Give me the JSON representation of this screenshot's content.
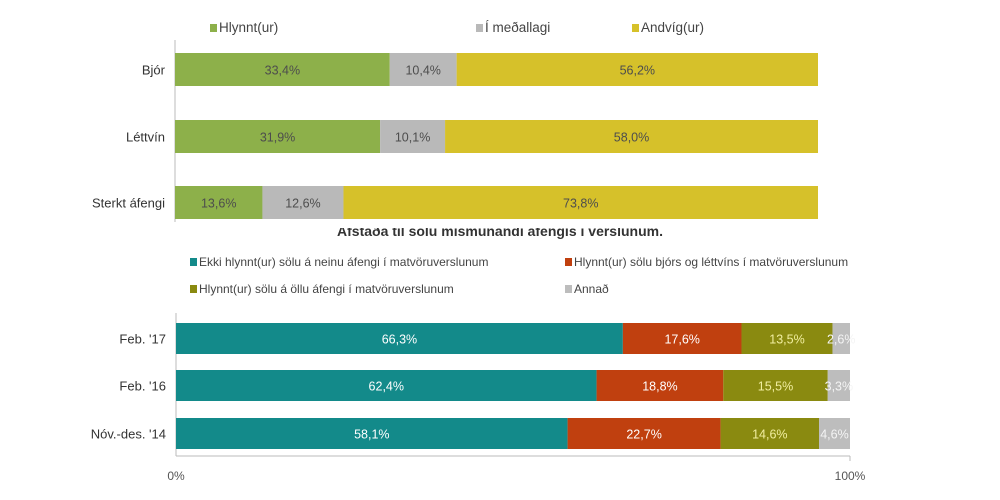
{
  "chart_data": [
    {
      "type": "bar",
      "orientation": "horizontal",
      "stacked": true,
      "categories": [
        "Bjór",
        "Léttvín",
        "Sterkt áfengi"
      ],
      "series": [
        {
          "name": "Hlynnt(ur)",
          "color": "#8db04a",
          "values": [
            33.4,
            31.9,
            13.6
          ],
          "labels": [
            "33,4%",
            "31,9%",
            "13,6%"
          ]
        },
        {
          "name": "Í meðallagi",
          "color": "#b9b9b9",
          "values": [
            10.4,
            10.1,
            12.6
          ],
          "labels": [
            "10,4%",
            "10,1%",
            "12,6%"
          ]
        },
        {
          "name": "Andvíg(ur)",
          "color": "#d6c12a",
          "values": [
            56.2,
            58.0,
            73.8
          ],
          "labels": [
            "56,2%",
            "58,0%",
            "73,8%"
          ]
        }
      ],
      "xlim": [
        0,
        100
      ],
      "legend": "top"
    },
    {
      "type": "bar",
      "orientation": "horizontal",
      "stacked": true,
      "title": "Afstaða til sölu mismunandi áfengis í verslunum.",
      "categories": [
        "Feb. '17",
        "Feb. '16",
        "Nóv.-des. '14"
      ],
      "series": [
        {
          "name": "Ekki hlynnt(ur) sölu á neinu áfengi í matvöruverslunum",
          "color": "#138a8a",
          "values": [
            66.3,
            62.4,
            58.1
          ],
          "labels": [
            "66,3%",
            "62,4%",
            "58,1%"
          ]
        },
        {
          "name": "Hlynnt(ur) sölu bjórs og léttvíns í matvöruverslunum",
          "color": "#c0400f",
          "values": [
            17.6,
            18.8,
            22.7
          ],
          "labels": [
            "17,6%",
            "18,8%",
            "22,7%"
          ]
        },
        {
          "name": "Hlynnt(ur) sölu á öllu áfengi í matvöruverslunum",
          "color": "#8a8a10",
          "values": [
            13.5,
            15.5,
            14.6
          ],
          "labels": [
            "13,5%",
            "15,5%",
            "14,6%"
          ]
        },
        {
          "name": "Annað",
          "color": "#bdbdbd",
          "values": [
            2.6,
            3.3,
            4.6
          ],
          "labels": [
            "2,6%",
            "3,3%",
            "4,6%"
          ]
        }
      ],
      "xlim": [
        0,
        100
      ],
      "xticks": [
        "0%",
        "100%"
      ],
      "legend": "top"
    }
  ]
}
